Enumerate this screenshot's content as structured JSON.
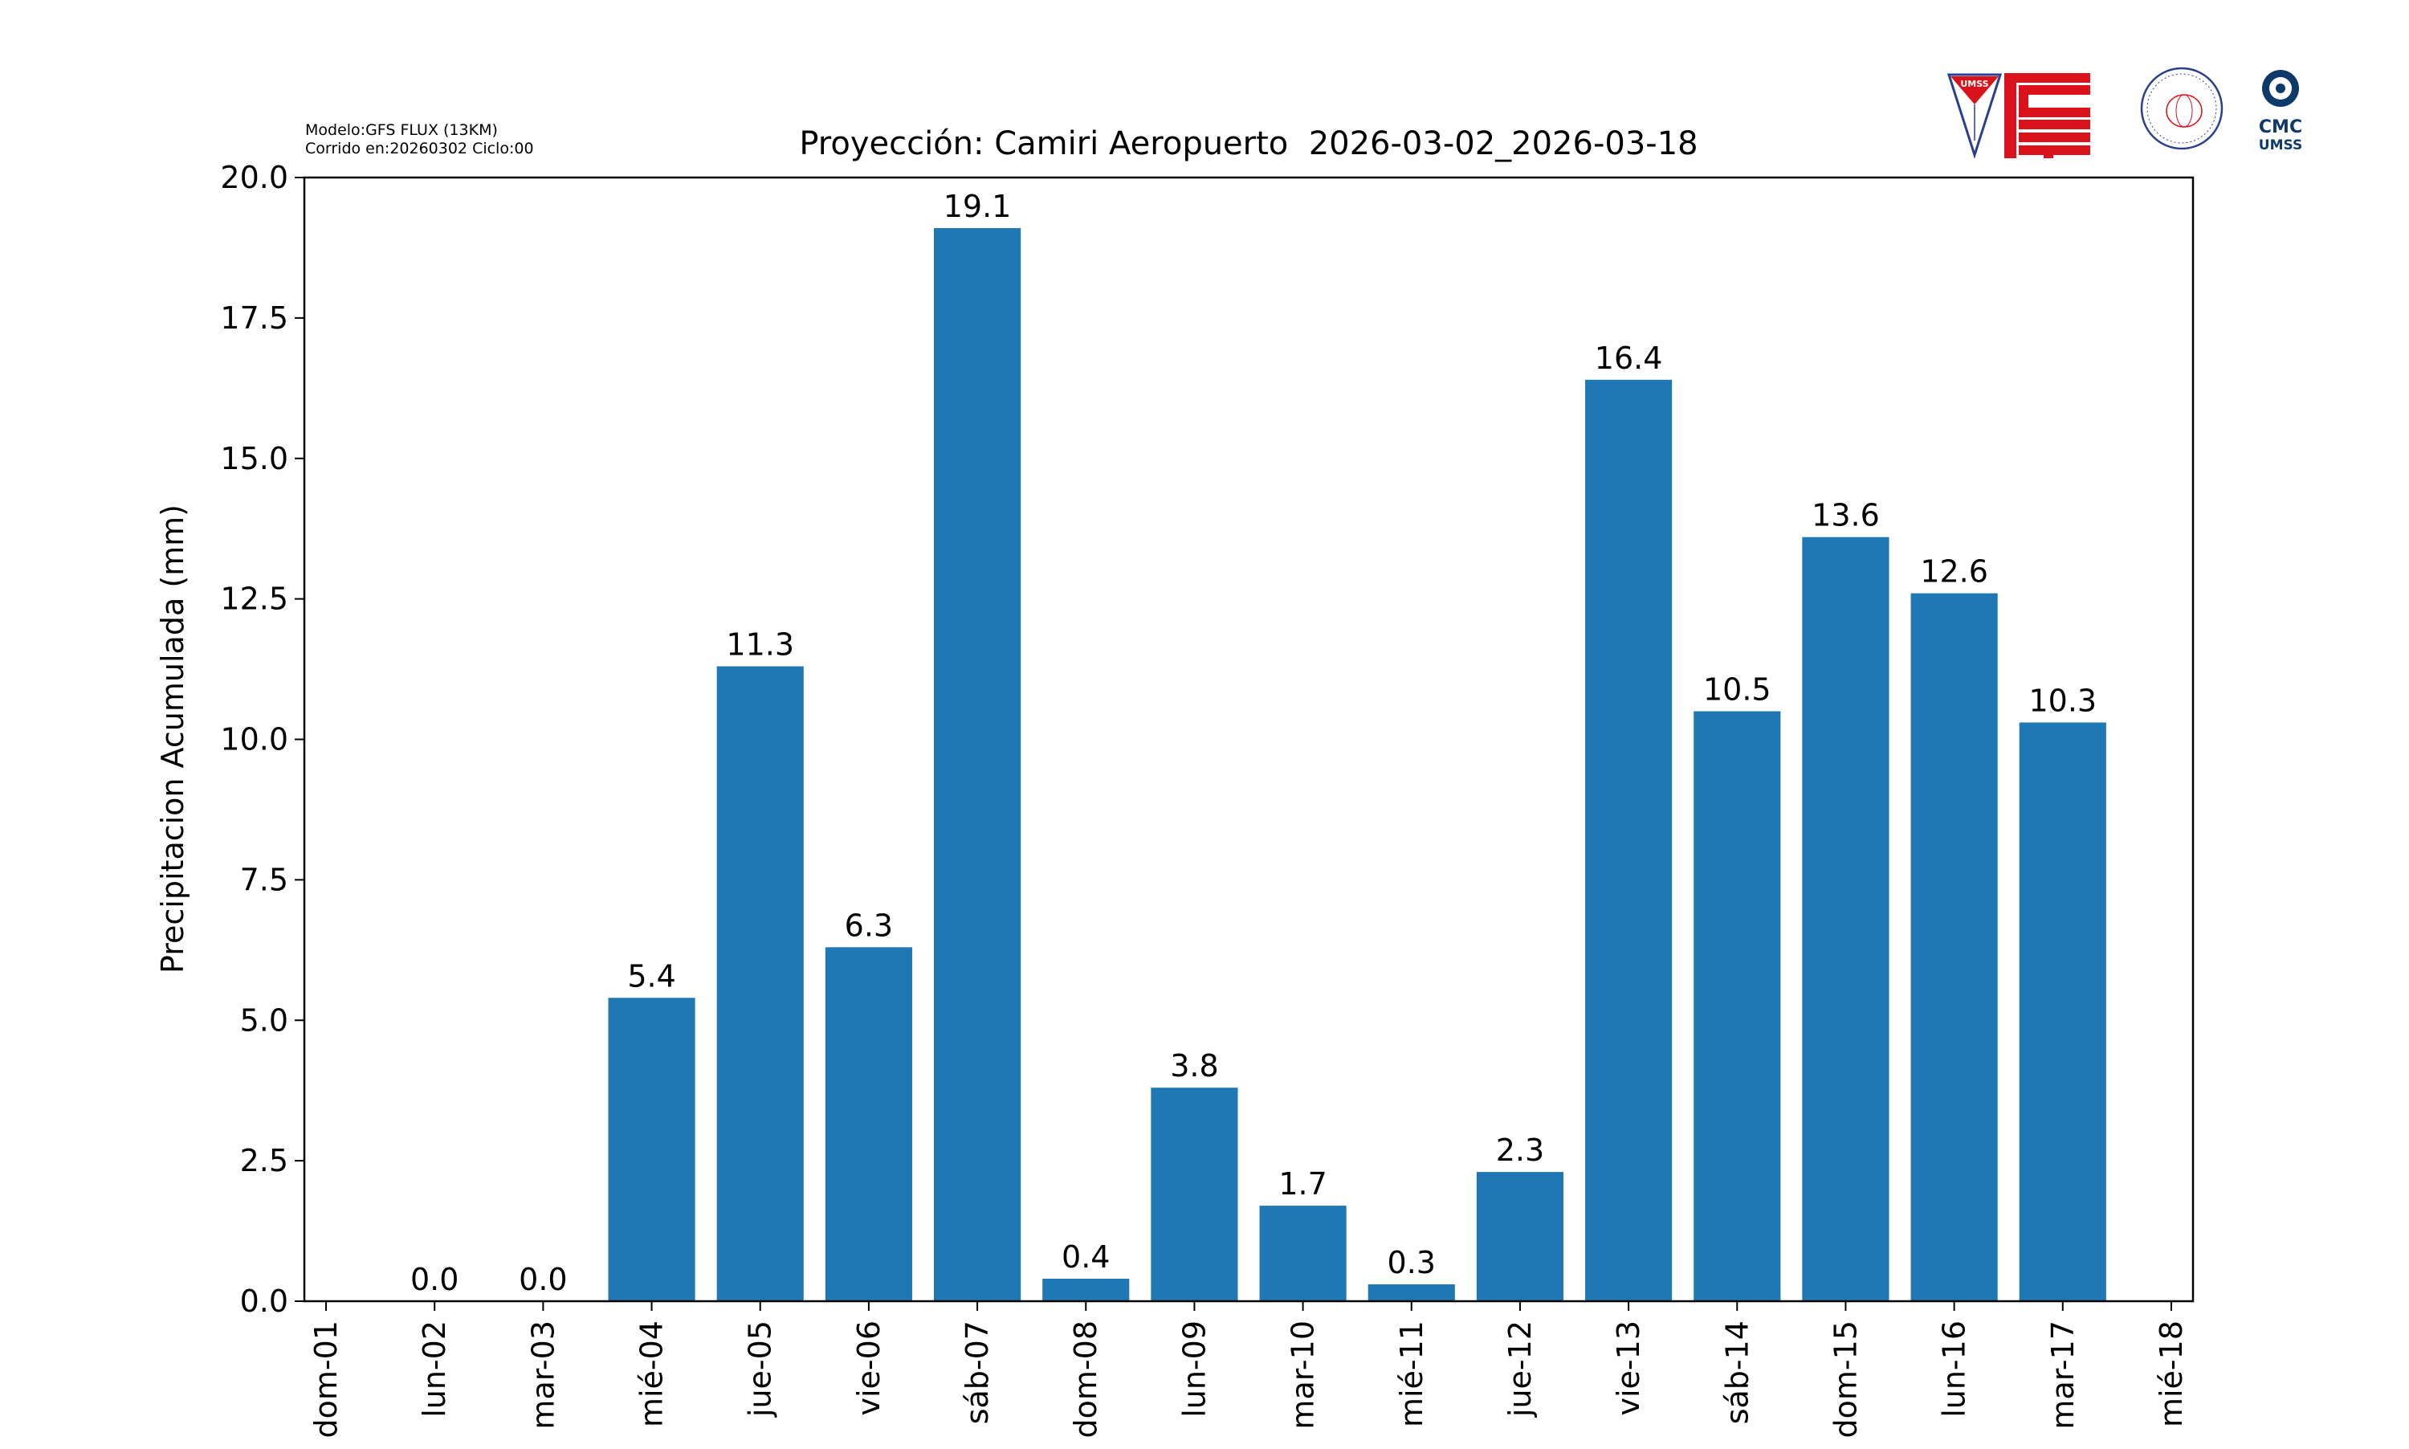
{
  "model_info": {
    "line1": "Modelo:GFS FLUX (13KM)",
    "line2": "Corrido en:20260302 Ciclo:00"
  },
  "logos": {
    "umss": "UMSS",
    "fisica": "DEPARTAMENTO DE FÍSICA",
    "fisica_sub": "FCyT-UMSS",
    "cmc_line1": "CMC",
    "cmc_line2": "UMSS"
  },
  "colors": {
    "bar": "#1f77b4",
    "logo_red": "#d9121b",
    "logo_blue": "#0d3a6b"
  },
  "chart_data": {
    "type": "bar",
    "title": "Proyección: Camiri Aeropuerto  2026-03-02_2026-03-18",
    "xlabel": "",
    "ylabel": "Precipitacion Acumulada (mm)",
    "ylim": [
      0,
      20
    ],
    "xlim": [
      -0.2,
      17.2
    ],
    "yticks": [
      "0.0",
      "2.5",
      "5.0",
      "7.5",
      "10.0",
      "12.5",
      "15.0",
      "17.5",
      "20.0"
    ],
    "categories": [
      "dom-01",
      "lun-02",
      "mar-03",
      "mié-04",
      "jue-05",
      "vie-06",
      "sáb-07",
      "dom-08",
      "lun-09",
      "mar-10",
      "mié-11",
      "jue-12",
      "vie-13",
      "sáb-14",
      "dom-15",
      "lun-16",
      "mar-17",
      "mié-18"
    ],
    "bar_categories": [
      "lun-02",
      "mar-03",
      "mié-04",
      "jue-05",
      "vie-06",
      "sáb-07",
      "dom-08",
      "lun-09",
      "mar-10",
      "mié-11",
      "jue-12",
      "vie-13",
      "sáb-14",
      "dom-15",
      "lun-16",
      "mar-17"
    ],
    "values": [
      0.0,
      0.0,
      5.4,
      11.3,
      6.3,
      19.1,
      0.4,
      3.8,
      1.7,
      0.3,
      2.3,
      16.4,
      10.5,
      13.6,
      12.6,
      10.3
    ],
    "labels": [
      "0.0",
      "0.0",
      "5.4",
      "11.3",
      "6.3",
      "19.1",
      "0.4",
      "3.8",
      "1.7",
      "0.3",
      "2.3",
      "16.4",
      "10.5",
      "13.6",
      "12.6",
      "10.3"
    ],
    "grid": false,
    "legend": "none"
  }
}
